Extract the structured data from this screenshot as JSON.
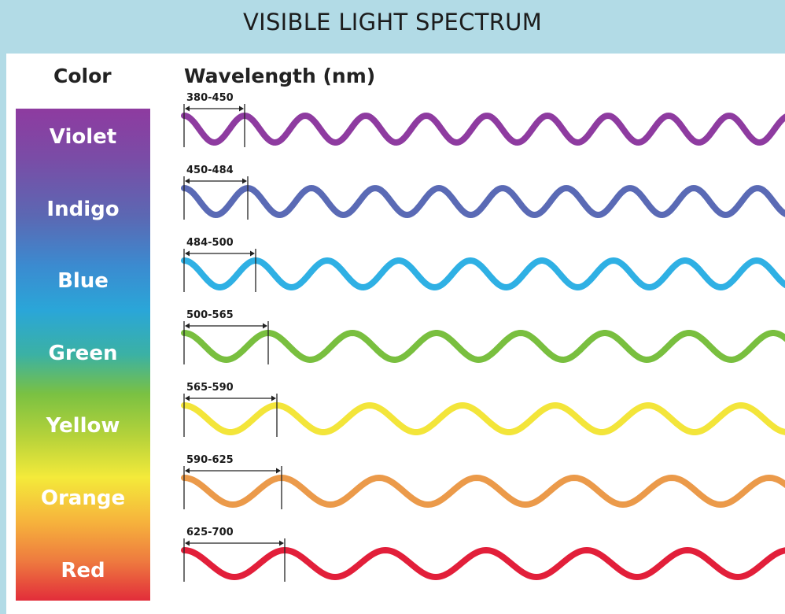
{
  "title": "VISIBLE LIGHT SPECTRUM",
  "headers": {
    "color": "Color",
    "wavelength": "Wavelength (nm)"
  },
  "bands": [
    {
      "name": "Violet",
      "range": "380-450",
      "color": "#8e3ba0"
    },
    {
      "name": "Indigo",
      "range": "450-484",
      "color": "#5a6ab5"
    },
    {
      "name": "Blue",
      "range": "484-500",
      "color": "#2fb0e4"
    },
    {
      "name": "Green",
      "range": "500-565",
      "color": "#79bf3f"
    },
    {
      "name": "Yellow",
      "range": "565-590",
      "color": "#f3e53a"
    },
    {
      "name": "Orange",
      "range": "590-625",
      "color": "#eb9a4a"
    },
    {
      "name": "Red",
      "range": "625-700",
      "color": "#e21f3a"
    }
  ]
}
